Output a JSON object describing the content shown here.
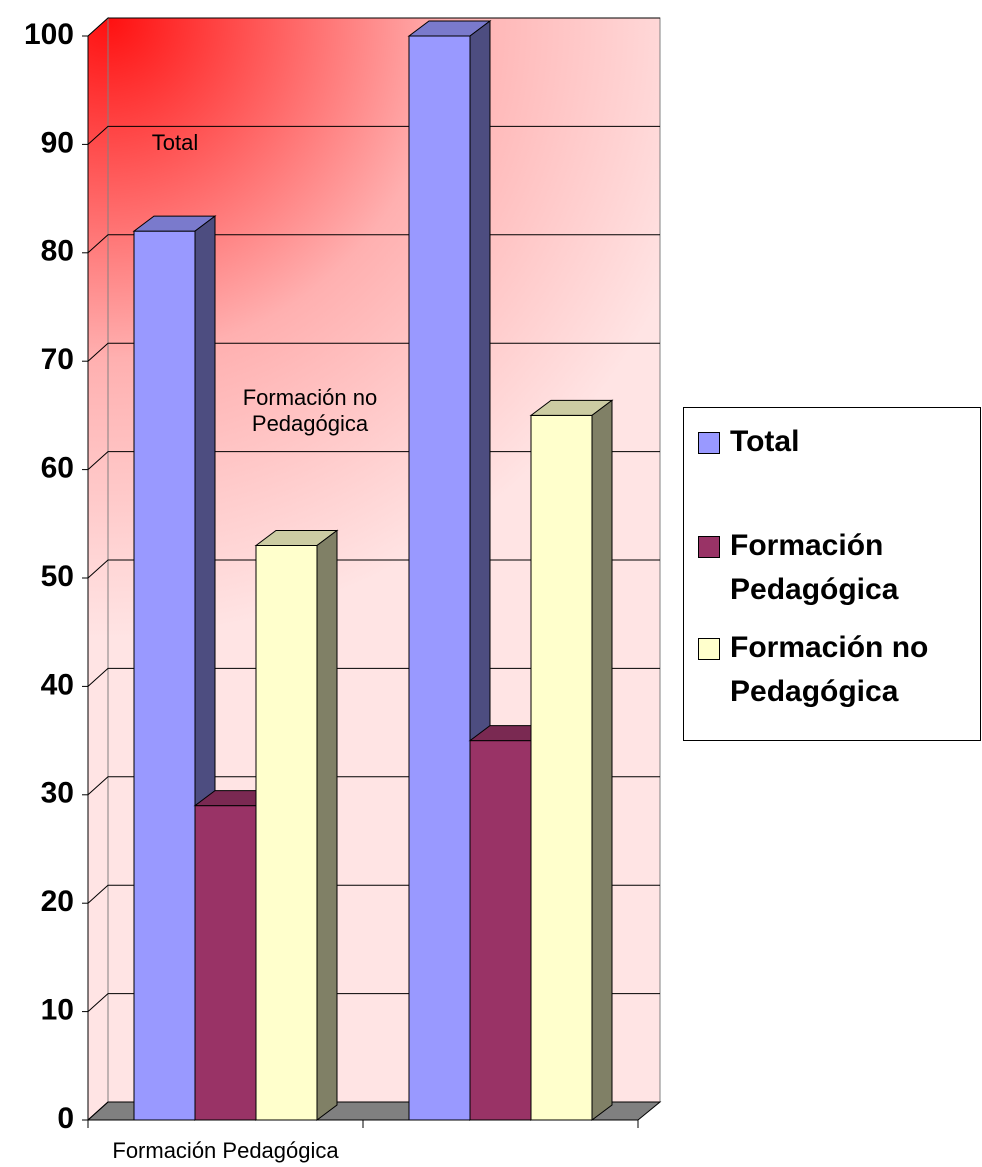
{
  "chart_data": {
    "type": "bar3d",
    "categories": [
      "Formación Pedagógica",
      null
    ],
    "series": [
      {
        "name": "Total",
        "color": "#9999ff",
        "values": [
          82,
          100
        ]
      },
      {
        "name": "Formación Pedagógica",
        "color": "#993366",
        "values": [
          29,
          35
        ]
      },
      {
        "name": "Formación no Pedagógica",
        "color": "#ffffcc",
        "values": [
          53,
          65
        ]
      }
    ],
    "ylim": [
      0,
      100
    ],
    "yticks": [
      0,
      10,
      20,
      30,
      40,
      50,
      60,
      70,
      80,
      90,
      100
    ],
    "grid": true,
    "legend": "right",
    "annotations": [
      "Total",
      "Formación no Pedagógica"
    ]
  }
}
